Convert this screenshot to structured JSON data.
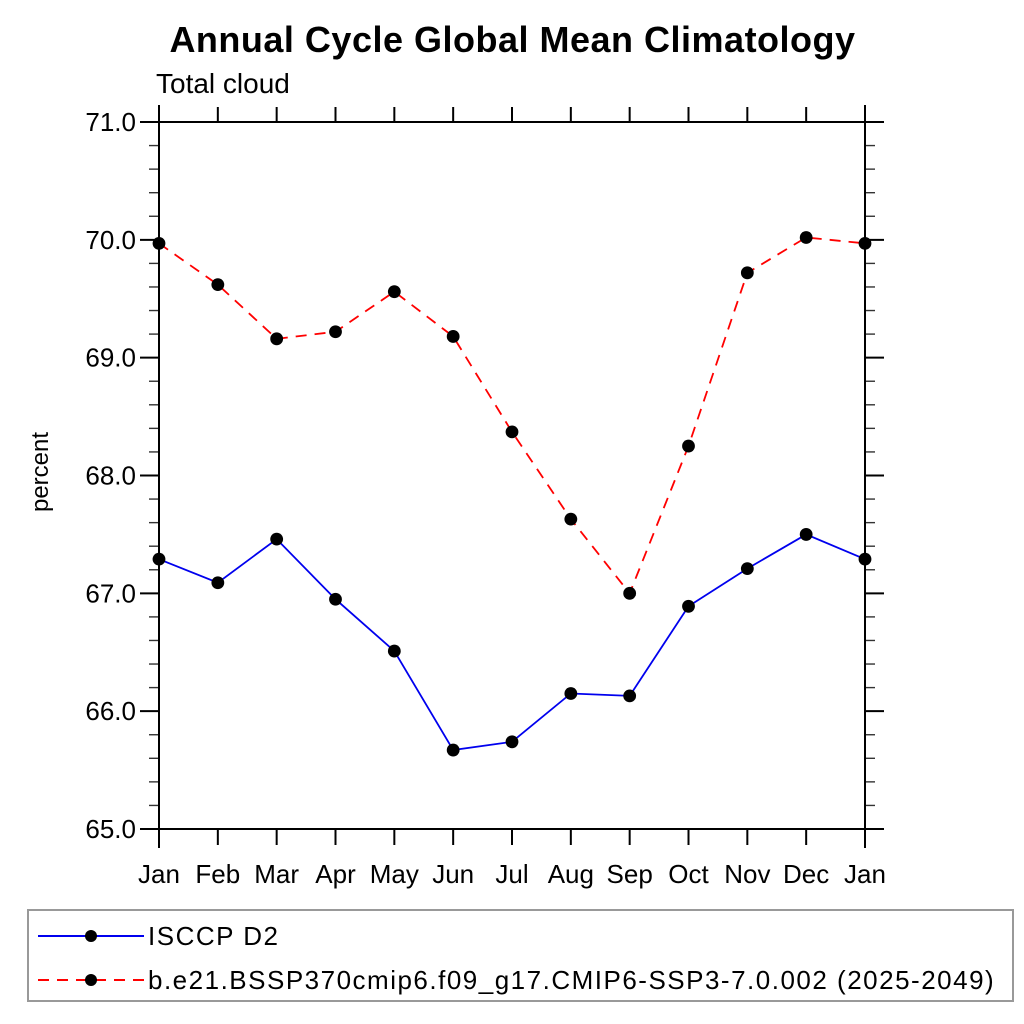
{
  "chart_data": {
    "type": "line",
    "title": "Annual Cycle Global Mean Climatology",
    "subtitle": "Total cloud",
    "ylabel": "percent",
    "categories": [
      "Jan",
      "Feb",
      "Mar",
      "Apr",
      "May",
      "Jun",
      "Jul",
      "Aug",
      "Sep",
      "Oct",
      "Nov",
      "Dec",
      "Jan"
    ],
    "ylim": [
      65.0,
      71.0
    ],
    "ytick_step_major": 1.0,
    "ytick_step_minor": 0.2,
    "ytick_labels": [
      "65.0",
      "66.0",
      "67.0",
      "68.0",
      "69.0",
      "70.0",
      "71.0"
    ],
    "grid": false,
    "legend_position": "boxed-below-chart",
    "marker": {
      "shape": "filled-circle",
      "color": "#000000"
    },
    "series": [
      {
        "name": "ISCCP D2",
        "color": "#0000ee",
        "line_style": "solid",
        "values": [
          67.29,
          67.09,
          67.46,
          66.95,
          66.51,
          65.67,
          65.74,
          66.15,
          66.13,
          66.89,
          67.21,
          67.5,
          67.29
        ]
      },
      {
        "name": "b.e21.BSSP370cmip6.f09_g17.CMIP6-SSP3-7.0.002 (2025-2049)",
        "color": "#ff0000",
        "line_style": "dashed",
        "values": [
          69.97,
          69.62,
          69.16,
          69.22,
          69.56,
          69.18,
          68.37,
          67.63,
          67.0,
          68.25,
          69.72,
          70.02,
          69.97
        ]
      }
    ]
  }
}
